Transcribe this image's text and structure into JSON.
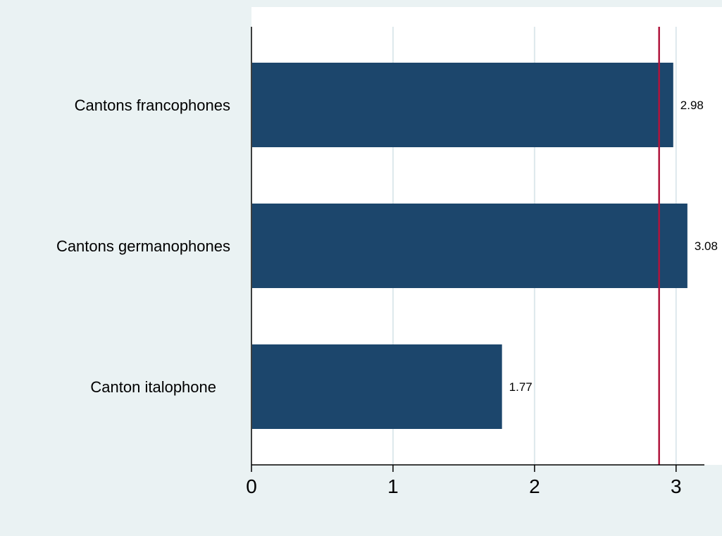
{
  "chart_data": {
    "type": "bar",
    "orientation": "horizontal",
    "title": "",
    "xlabel": "",
    "ylabel": "",
    "categories": [
      "Cantons francophones",
      "Cantons germanophones",
      "Canton italophone"
    ],
    "values": [
      2.98,
      3.08,
      1.77
    ],
    "value_labels": [
      "2.98",
      "3.08",
      "1.77"
    ],
    "xlim": [
      0,
      3.2
    ],
    "xticks": [
      0,
      1,
      2,
      3
    ],
    "xtick_labels": [
      "0",
      "1",
      "2",
      "3"
    ],
    "reference_line": {
      "value": 2.88,
      "orientation": "vertical"
    },
    "grid": true,
    "legend": "none",
    "colors": {
      "bar": "#1c466c",
      "reference_line": "#b0143c",
      "grid": "#dde8ec",
      "plot_background": "#ffffff",
      "outer_background": "#eaf2f3"
    }
  }
}
